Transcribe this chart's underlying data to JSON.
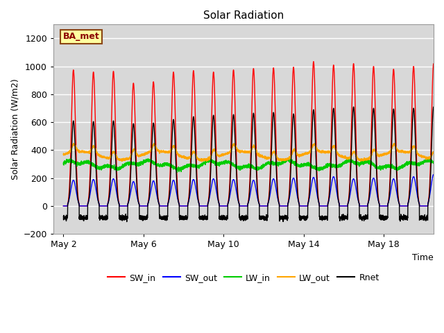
{
  "title": "Solar Radiation",
  "xlabel": "Time",
  "ylabel": "Solar Radiation (W/m2)",
  "ylim": [
    -200,
    1300
  ],
  "yticks": [
    -200,
    0,
    200,
    400,
    600,
    800,
    1000,
    1200
  ],
  "xtick_labels": [
    "May 2",
    "May 6",
    "May 10",
    "May 14",
    "May 18"
  ],
  "xtick_positions": [
    1,
    5,
    9,
    13,
    17
  ],
  "xlim": [
    0.5,
    19.5
  ],
  "annotation_text": "BA_met",
  "annotation_color": "#8B0000",
  "annotation_bg": "#FFFFA0",
  "annotation_border": "#8B4513",
  "bg_color": "#D8D8D8",
  "grid_color": "#FFFFFF",
  "series_colors": {
    "SW_in": "#FF0000",
    "SW_out": "#0000FF",
    "LW_in": "#00CC00",
    "LW_out": "#FFA500",
    "Rnet": "#000000"
  },
  "n_days": 19,
  "points_per_day": 288,
  "sw_in_peaks": [
    975,
    960,
    965,
    880,
    890,
    960,
    970,
    960,
    975,
    985,
    990,
    995,
    1035,
    1010,
    1020,
    1000,
    980,
    1000,
    1020
  ],
  "sw_out_peaks": [
    185,
    190,
    195,
    175,
    180,
    185,
    190,
    195,
    190,
    185,
    195,
    200,
    205,
    210,
    195,
    200,
    195,
    210,
    225
  ],
  "rnet_peaks": [
    610,
    605,
    610,
    590,
    595,
    620,
    640,
    650,
    655,
    665,
    670,
    660,
    690,
    700,
    710,
    700,
    695,
    700,
    710
  ],
  "lw_in_base": 295,
  "lw_in_amplitude": 20,
  "lw_out_base": 360,
  "lw_out_amplitude": 30,
  "lw_out_day_peak": 55,
  "rnet_night": -85,
  "figsize": [
    6.4,
    4.8
  ],
  "dpi": 100
}
